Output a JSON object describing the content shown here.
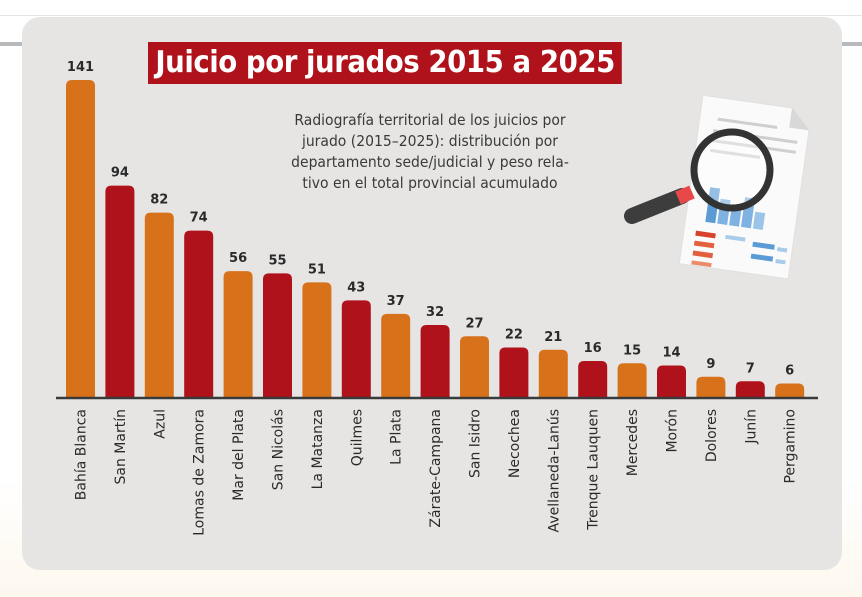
{
  "colors": {
    "orange": "#d7721a",
    "red": "#b0121b",
    "card": "#e6e5e4",
    "title_bg": "#b0121b"
  },
  "illustration": "document-magnifier-icon",
  "chart_data": {
    "type": "bar",
    "title": "Juicio por jurados 2015 a 2025",
    "subtitle": "Radiografía territorial de los juicios por jurado (2015–2025): distribución por departamento sede/judicial y peso relativo en el total provincial acumulado",
    "subtitle_lines": [
      "Radiografía territorial de los juicios por",
      "jurado (2015–2025): distribución por",
      "departamento sede/judicial y peso rela-",
      "tivo en el total provincial acumulado"
    ],
    "xlabel": "",
    "ylabel": "",
    "ylim": [
      0,
      141
    ],
    "grid": false,
    "categories": [
      "Bahía Blanca",
      "San Martín",
      "Azul",
      "Lomas de Zamora",
      "Mar del Plata",
      "San Nicolás",
      "La Matanza",
      "Quilmes",
      "La Plata",
      "Zárate-Campana",
      "San Isidro",
      "Necochea",
      "Avellaneda-Lanús",
      "Trenque Lauquen",
      "Mercedes",
      "Morón",
      "Dolores",
      "Junín",
      "Pergamino"
    ],
    "values": [
      141,
      94,
      82,
      74,
      56,
      55,
      51,
      43,
      37,
      32,
      27,
      22,
      21,
      16,
      15,
      14,
      9,
      7,
      6
    ],
    "value_labels": [
      "141",
      "94",
      "82",
      "74",
      "56",
      "55",
      "51",
      "43",
      "37",
      "32",
      "27",
      "22",
      "21",
      "16",
      "15",
      "14",
      "9",
      "7",
      "6"
    ]
  }
}
